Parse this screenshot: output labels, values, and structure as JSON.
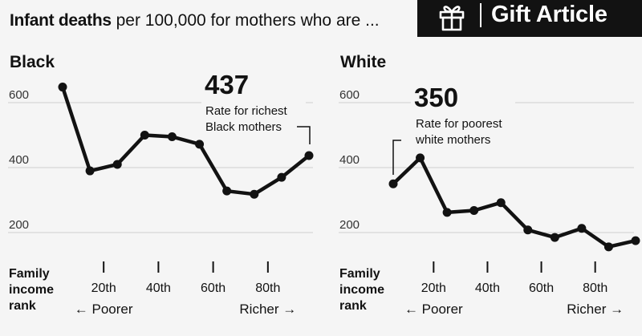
{
  "headline": {
    "bold": "Infant deaths",
    "rest": "per 100,000 for mothers who are ..."
  },
  "gift_button": {
    "label": "Gift Article",
    "icon": "gift-icon"
  },
  "income_axis": {
    "title_lines": [
      "Family",
      "income",
      "rank"
    ],
    "poorer": "← Poorer",
    "richer": "Richer →"
  },
  "chart_data": [
    {
      "type": "line",
      "title": "Black",
      "x": [
        5,
        15,
        25,
        35,
        45,
        55,
        65,
        75,
        85,
        95
      ],
      "values": [
        648,
        390,
        410,
        500,
        495,
        472,
        328,
        318,
        370,
        437
      ],
      "ylim": [
        160,
        720
      ],
      "yticks": [
        200,
        400,
        600
      ],
      "xticks": [
        20,
        40,
        60,
        80
      ],
      "grid": true,
      "annotation": {
        "value": "437",
        "text_lines": [
          "Rate for richest",
          "Black mothers"
        ],
        "target_index": 9
      }
    },
    {
      "type": "line",
      "title": "White",
      "x": [
        5,
        15,
        25,
        35,
        45,
        55,
        65,
        75,
        85,
        95
      ],
      "values": [
        350,
        430,
        262,
        268,
        292,
        208,
        185,
        213,
        156,
        175
      ],
      "ylim": [
        160,
        720
      ],
      "yticks": [
        200,
        400,
        600
      ],
      "xticks": [
        20,
        40,
        60,
        80
      ],
      "grid": true,
      "annotation": {
        "value": "350",
        "text_lines": [
          "Rate for poorest",
          "white mothers"
        ],
        "target_index": 0
      }
    }
  ]
}
